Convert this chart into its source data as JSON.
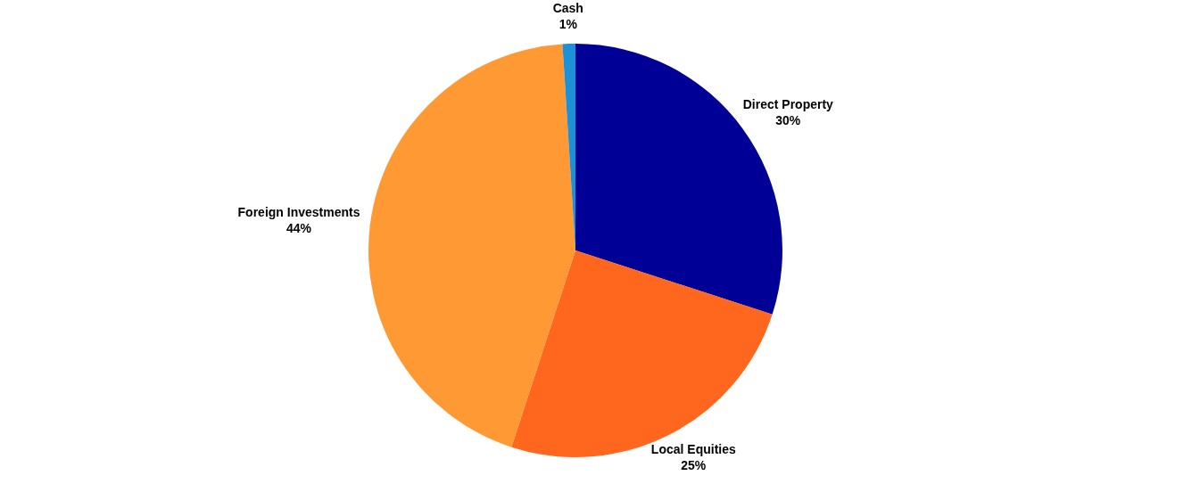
{
  "chart_data": {
    "type": "pie",
    "categories": [
      "Direct Property",
      "Local Equities",
      "Foreign Investments",
      "Cash"
    ],
    "values": [
      30,
      25,
      44,
      1
    ],
    "colors": [
      "#000096",
      "#ff661e",
      "#ff9933",
      "#1e90d8"
    ],
    "value_labels": [
      "30%",
      "25%",
      "44%",
      "1%"
    ],
    "legend": false
  }
}
